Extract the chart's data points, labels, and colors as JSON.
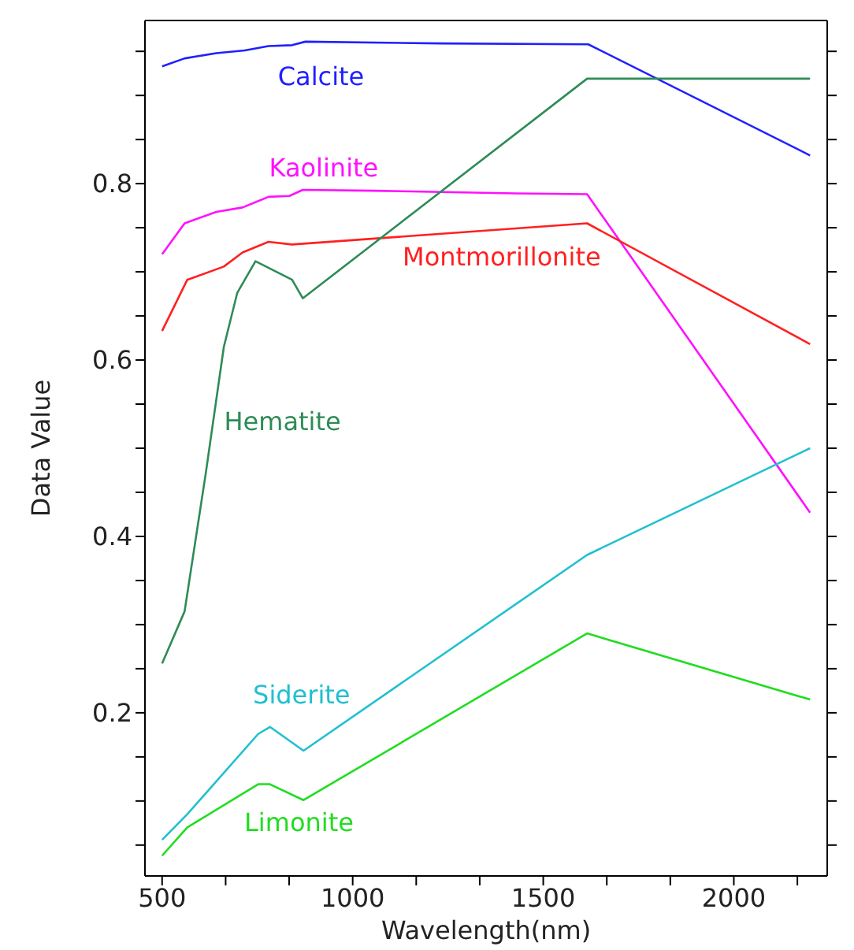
{
  "chart_data": {
    "type": "line",
    "xlabel": "Wavelength(nm)",
    "ylabel": "Data Value",
    "xlim": [
      455,
      2245
    ],
    "ylim": [
      0.015,
      0.985
    ],
    "xticks": [
      500,
      {
        "value": 666.7,
        "label": null
      },
      {
        "value": 833.3,
        "label": null
      },
      1000,
      {
        "value": 1166.7,
        "label": null
      },
      {
        "value": 1333.3,
        "label": null
      },
      1500,
      {
        "value": 1666.7,
        "label": null
      },
      {
        "value": 1833.3,
        "label": null
      },
      2000,
      {
        "value": 2166.7,
        "label": null
      }
    ],
    "yticks": [
      {
        "value": 0.05,
        "label": null
      },
      {
        "value": 0.1,
        "label": null
      },
      {
        "value": 0.15,
        "label": null
      },
      0.2,
      {
        "value": 0.25,
        "label": null
      },
      {
        "value": 0.3,
        "label": null
      },
      {
        "value": 0.35,
        "label": null
      },
      0.4,
      {
        "value": 0.45,
        "label": null
      },
      {
        "value": 0.5,
        "label": null
      },
      {
        "value": 0.55,
        "label": null
      },
      0.6,
      {
        "value": 0.65,
        "label": null
      },
      {
        "value": 0.7,
        "label": null
      },
      {
        "value": 0.75,
        "label": null
      },
      0.8,
      {
        "value": 0.85,
        "label": null
      },
      {
        "value": 0.9,
        "label": null
      },
      {
        "value": 0.95,
        "label": null
      }
    ],
    "grid": false,
    "legend": false,
    "marker": "none",
    "line_style": "solid",
    "series": [
      {
        "name": "Calcite",
        "color": "#2020ff",
        "x": [
          500,
          559,
          642,
          717,
          779,
          841,
          876,
          1233,
          1618,
          2200
        ],
        "values": [
          0.933,
          0.942,
          0.948,
          0.951,
          0.956,
          0.957,
          0.961,
          0.959,
          0.958,
          0.832
        ]
      },
      {
        "name": "Kaolinite",
        "color": "#ff10ff",
        "x": [
          500,
          559,
          642,
          711,
          779,
          834,
          869,
          1054,
          1425,
          1615,
          2200
        ],
        "values": [
          0.72,
          0.755,
          0.768,
          0.773,
          0.785,
          0.786,
          0.793,
          0.792,
          0.789,
          0.788,
          0.427
        ]
      },
      {
        "name": "Montmorillonite",
        "color": "#ff2020",
        "x": [
          500,
          566,
          662,
          711,
          779,
          841,
          1615,
          2200
        ],
        "values": [
          0.633,
          0.691,
          0.706,
          0.722,
          0.734,
          0.731,
          0.755,
          0.618
        ]
      },
      {
        "name": "Hematite",
        "color": "#2e8b57",
        "x": [
          500,
          559,
          614,
          662,
          697,
          745,
          841,
          869,
          1615,
          2200
        ],
        "values": [
          0.256,
          0.315,
          0.47,
          0.615,
          0.676,
          0.712,
          0.691,
          0.67,
          0.919,
          0.919
        ]
      },
      {
        "name": "Siderite",
        "color": "#20c0d0",
        "x": [
          500,
          566,
          752,
          783,
          871,
          1615,
          2200
        ],
        "values": [
          0.056,
          0.085,
          0.176,
          0.184,
          0.157,
          0.379,
          0.5
        ]
      },
      {
        "name": "Limonite",
        "color": "#20dd20",
        "x": [
          500,
          566,
          752,
          783,
          871,
          1615,
          2200
        ],
        "values": [
          0.038,
          0.07,
          0.119,
          0.119,
          0.101,
          0.29,
          0.215
        ]
      }
    ]
  }
}
